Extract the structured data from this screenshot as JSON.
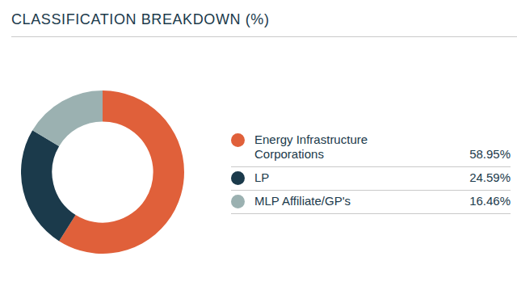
{
  "chart_data": {
    "type": "doughnut",
    "title": "CLASSIFICATION BREAKDOWN (%)",
    "categories": [
      "Energy Infrastructure Corporations",
      "LP",
      "MLP Affiliate/GP's"
    ],
    "values": [
      58.95,
      24.59,
      16.46
    ],
    "value_labels": [
      "58.95%",
      "24.59%",
      "16.46%"
    ],
    "colors": [
      "#e0603a",
      "#1b3a4b",
      "#9bb1b1"
    ],
    "legend": "right"
  }
}
